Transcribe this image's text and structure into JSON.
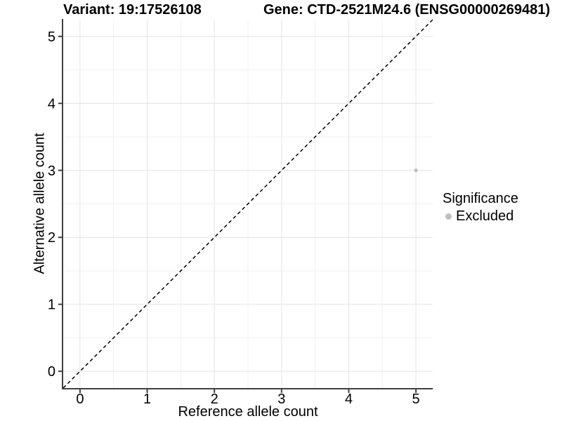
{
  "chart_data": {
    "type": "scatter",
    "title_left": "Variant: 19:17526108",
    "title_right": "Gene: CTD-2521M24.6 (ENSG00000269481)",
    "xlabel": "Reference allele count",
    "ylabel": "Alternative allele count",
    "xlim": [
      -0.25,
      5.25
    ],
    "ylim": [
      -0.25,
      5.25
    ],
    "x_ticks": [
      0,
      1,
      2,
      3,
      4,
      5
    ],
    "y_ticks": [
      0,
      1,
      2,
      3,
      4,
      5
    ],
    "x_minor_ticks": [
      0.5,
      1.5,
      2.5,
      3.5,
      4.5
    ],
    "y_minor_ticks": [
      0.5,
      1.5,
      2.5,
      3.5,
      4.5
    ],
    "grid": {
      "on": true,
      "major_color": "#e3e3e3",
      "minor_color": "#f0f0f0"
    },
    "axis_color": "#404040",
    "reference_line": {
      "style": "dashed",
      "from": [
        -0.25,
        -0.25
      ],
      "to": [
        5.25,
        5.25
      ],
      "color": "#000000",
      "meaning": "identity line y = x"
    },
    "series": [
      {
        "name": "Excluded",
        "color": "#bebebe",
        "points": [
          {
            "x": 5,
            "y": 3
          }
        ]
      }
    ],
    "legend": {
      "title": "Significance",
      "position": "right",
      "items": [
        {
          "label": "Excluded",
          "color": "#bebebe"
        }
      ]
    }
  }
}
